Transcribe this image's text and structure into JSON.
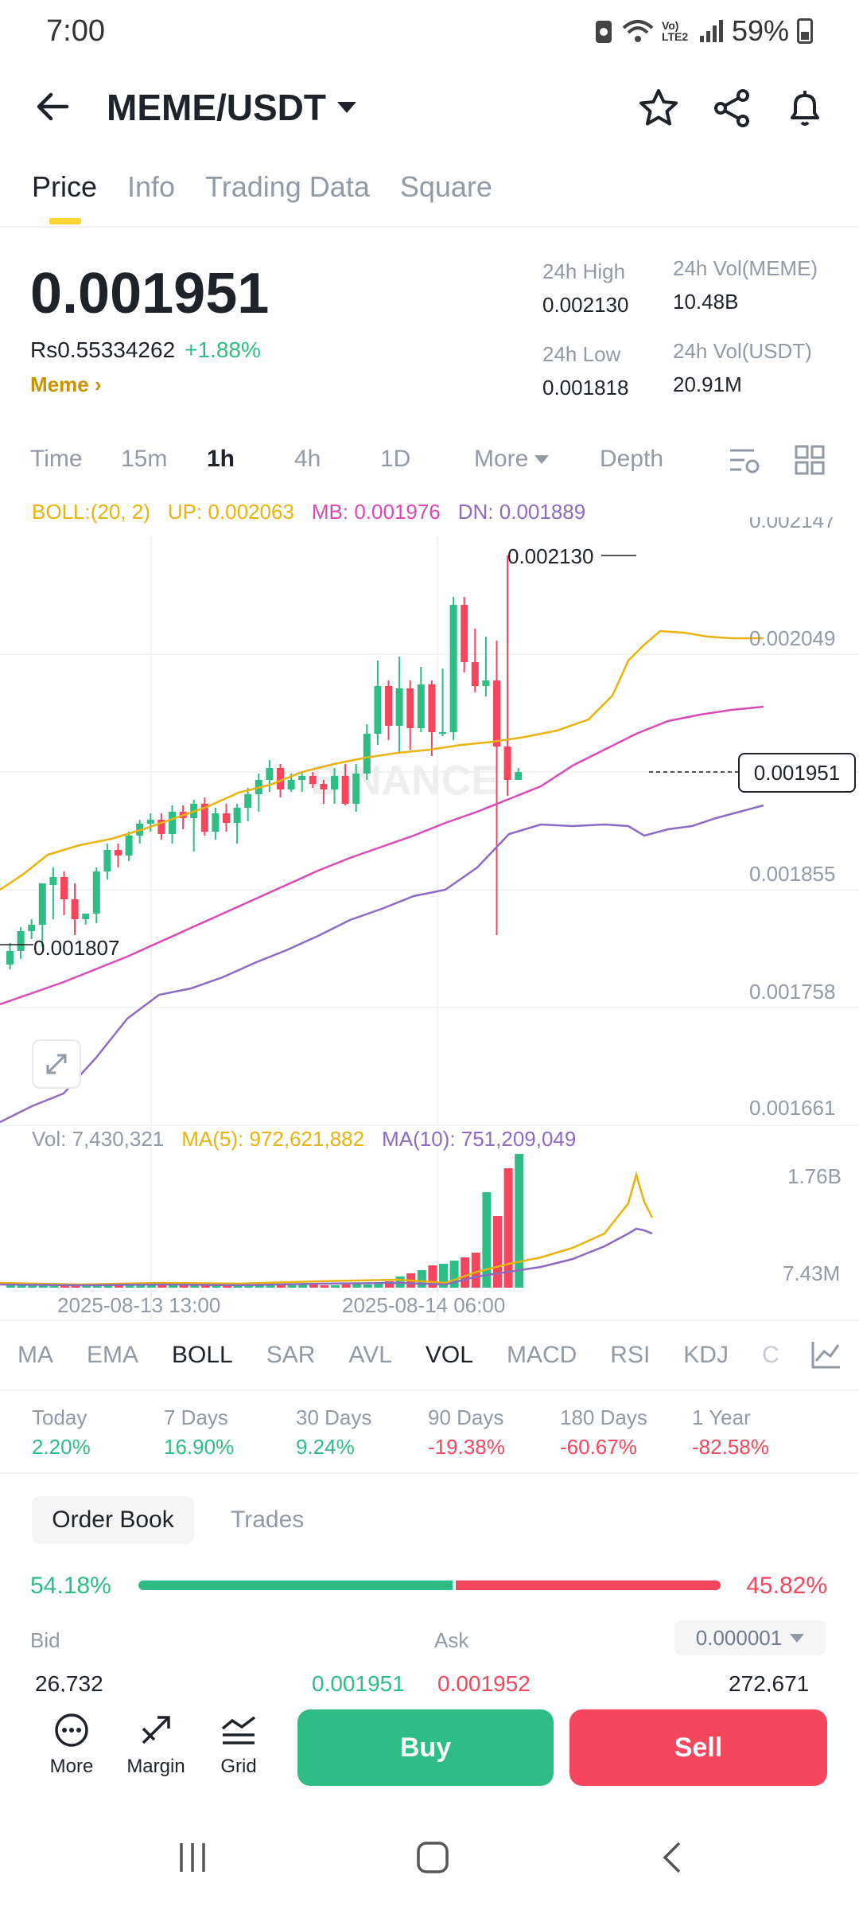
{
  "status": {
    "time": "7:00",
    "battery": "59%",
    "net_label": "Vo) LTE2"
  },
  "header": {
    "pair": "MEME/USDT"
  },
  "tabs": [
    {
      "label": "Price",
      "active": true
    },
    {
      "label": "Info"
    },
    {
      "label": "Trading Data"
    },
    {
      "label": "Square"
    }
  ],
  "price": {
    "last": "0.001951",
    "fiat": "Rs0.55334262",
    "change": "+1.88%",
    "token_link": "Meme"
  },
  "stats": {
    "high_label": "24h High",
    "high": "0.002130",
    "low_label": "24h Low",
    "low": "0.001818",
    "vol_base_label": "24h Vol(MEME)",
    "vol_base": "10.48B",
    "vol_quote_label": "24h Vol(USDT)",
    "vol_quote": "20.91M"
  },
  "intervals": [
    "Time",
    "15m",
    "1h",
    "4h",
    "1D",
    "More",
    "Depth"
  ],
  "active_interval": "1h",
  "boll": {
    "name": "BOLL:(20, 2)",
    "up": "UP: 0.002063",
    "mb": "MB: 0.001976",
    "dn": "DN: 0.001889"
  },
  "chart": {
    "y_ticks": [
      "0.002147",
      "0.002049",
      "0.001855",
      "0.001758",
      "0.001661"
    ],
    "max_label": "0.002130",
    "min_label": "0.001807",
    "current_tag": "0.001951",
    "watermark": "BINANCE",
    "vol_axis": [
      "1.76B",
      "7.43M"
    ],
    "x_labels": [
      "2025-08-13 13:00",
      "2025-08-14 06:00"
    ]
  },
  "vol_legend": {
    "vol": "Vol: 7,430,321",
    "ma5": "MA(5): 972,621,882",
    "ma10": "MA(10): 751,209,049"
  },
  "indicators": [
    "MA",
    "EMA",
    "BOLL",
    "SAR",
    "AVL",
    "VOL",
    "MACD",
    "RSI",
    "KDJ",
    "C"
  ],
  "performance": [
    {
      "label": "Today",
      "value": "2.20%",
      "dir": "up"
    },
    {
      "label": "7 Days",
      "value": "16.90%",
      "dir": "up"
    },
    {
      "label": "30 Days",
      "value": "9.24%",
      "dir": "up"
    },
    {
      "label": "90 Days",
      "value": "-19.38%",
      "dir": "down"
    },
    {
      "label": "180 Days",
      "value": "-60.67%",
      "dir": "down"
    },
    {
      "label": "1 Year",
      "value": "-82.58%",
      "dir": "down"
    }
  ],
  "orderbook": {
    "tab_active": "Order Book",
    "tab_other": "Trades",
    "bid_pct": "54.18%",
    "ask_pct": "45.82%",
    "bid_ratio": 0.5418,
    "bid_header": "Bid",
    "ask_header": "Ask",
    "tick": "0.000001",
    "row": {
      "bid_qty": "26,732",
      "bid_price": "0.001951",
      "ask_price": "0.001952",
      "ask_qty": "272,671"
    }
  },
  "bottom": {
    "more": "More",
    "margin": "Margin",
    "grid": "Grid",
    "buy": "Buy",
    "sell": "Sell"
  },
  "colors": {
    "up": "#2ebd85",
    "down": "#f6465d",
    "accent": "#fcd535",
    "boll_up": "#e8b30b",
    "boll_mb": "#d94ab7",
    "boll_dn": "#8c6bc2"
  }
}
